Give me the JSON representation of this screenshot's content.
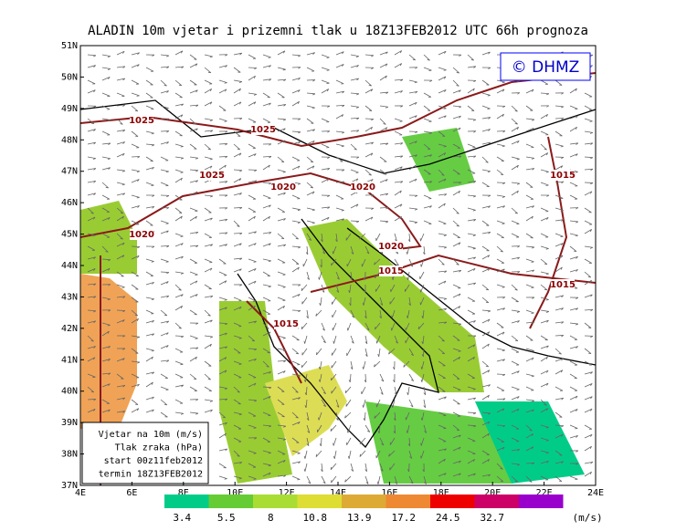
{
  "title": "ALADIN 10m vjetar i prizemni tlak u 18Z13FEB2012 UTC 66h prognoza",
  "copyright": "© DHMZ",
  "lat_labels": [
    "51N",
    "50N",
    "49N",
    "48N",
    "47N",
    "46N",
    "45N",
    "44N",
    "43N",
    "42N",
    "41N",
    "40N",
    "39N",
    "38N",
    "37N"
  ],
  "lon_labels": [
    "4E",
    "6E",
    "8E",
    "10E",
    "12E",
    "14E",
    "16E",
    "18E",
    "20E",
    "22E",
    "24E"
  ],
  "isobar_labels": [
    "1025",
    "1025",
    "1025",
    "1020",
    "1020",
    "1020",
    "1020",
    "1015",
    "1015",
    "1015",
    "1015"
  ],
  "info_box": [
    "Vjetar na 10m (m/s)",
    "Tlak zraka (hPa)",
    "start 00z11feb2012",
    "termin 18Z13FEB2012"
  ],
  "colorbar": {
    "colors": [
      "#00cc88",
      "#66cc33",
      "#aadd33",
      "#dddd33",
      "#ddaa33",
      "#ee8833",
      "#ee0000",
      "#cc0066",
      "#9900cc"
    ],
    "labels": [
      "3.4",
      "5.5",
      "8",
      "10.8",
      "13.9",
      "17.2",
      "24.5",
      "32.7"
    ],
    "unit": "(m/s)"
  }
}
